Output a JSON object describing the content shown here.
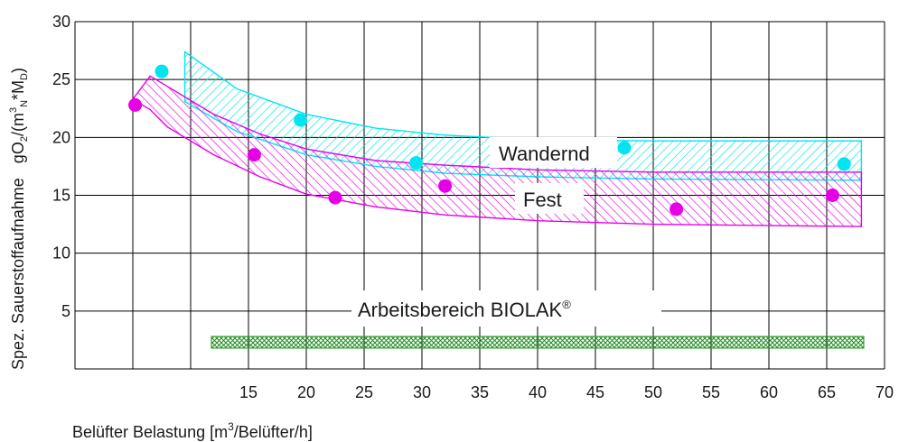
{
  "chart_data": {
    "type": "scatter",
    "x_ticks": [
      15,
      20,
      25,
      30,
      35,
      40,
      45,
      50,
      55,
      60,
      65,
      70
    ],
    "y_ticks": [
      5,
      10,
      15,
      20,
      25,
      30
    ],
    "xlim": [
      0,
      70
    ],
    "ylim": [
      0,
      30
    ],
    "grid": true,
    "xlabel": {
      "main": "Belüfter Belastung [m",
      "sup": "3",
      "rest": "/Belüfter/h]"
    },
    "ylabel": {
      "left": "Spez. Sauerstoffaufnahme",
      "unit_a": "gO",
      "unit_b": "/(m",
      "unit_c": "*M",
      "sub1": "2",
      "sup1": "3",
      "sub2": "N",
      "sub3": "D",
      "close": ")"
    },
    "series": [
      {
        "name": "Wandernd",
        "color": "#00e5f0",
        "points": [
          [
            7.5,
            25.7
          ],
          [
            19.5,
            21.5
          ],
          [
            29.5,
            17.8
          ],
          [
            47.5,
            19.1
          ],
          [
            66.5,
            17.7
          ]
        ],
        "band_upper": [
          [
            9.5,
            27.4
          ],
          [
            14,
            24.2
          ],
          [
            20,
            22.0
          ],
          [
            26,
            20.8
          ],
          [
            32,
            20.2
          ],
          [
            40,
            19.8
          ],
          [
            50,
            19.7
          ],
          [
            68,
            19.7
          ]
        ],
        "band_lower": [
          [
            68,
            16.3
          ],
          [
            50,
            16.4
          ],
          [
            40,
            16.6
          ],
          [
            32,
            16.9
          ],
          [
            26,
            17.5
          ],
          [
            20,
            18.5
          ],
          [
            14,
            20.5
          ],
          [
            9.5,
            23.1
          ]
        ]
      },
      {
        "name": "Fest",
        "color": "#e600e6",
        "points": [
          [
            5.2,
            22.8
          ],
          [
            15.5,
            18.5
          ],
          [
            22.5,
            14.8
          ],
          [
            32.0,
            15.8
          ],
          [
            52.0,
            13.8
          ],
          [
            65.5,
            15.0
          ]
        ],
        "band_upper": [
          [
            6.5,
            25.3
          ],
          [
            12,
            22.0
          ],
          [
            16,
            20.3
          ],
          [
            20,
            19.0
          ],
          [
            26,
            18.0
          ],
          [
            32,
            17.6
          ],
          [
            40,
            17.2
          ],
          [
            50,
            17.0
          ],
          [
            68,
            17.0
          ]
        ],
        "band_lower": [
          [
            68,
            12.3
          ],
          [
            50,
            12.5
          ],
          [
            40,
            12.8
          ],
          [
            32,
            13.3
          ],
          [
            26,
            14.0
          ],
          [
            20,
            15.1
          ],
          [
            16,
            16.6
          ],
          [
            12,
            18.5
          ],
          [
            8,
            20.9
          ],
          [
            6.5,
            22.4
          ],
          [
            5.0,
            23.3
          ]
        ]
      }
    ],
    "working_range": {
      "label": "Arbeitsbereich BIOLAK",
      "registered": "®",
      "x_start": 11.8,
      "x_end": 68.2,
      "y_low": 1.8,
      "y_high": 2.8,
      "color": "#2e9e2e"
    },
    "annotations": {
      "wandernd": "Wandernd",
      "fest": "Fest"
    }
  }
}
